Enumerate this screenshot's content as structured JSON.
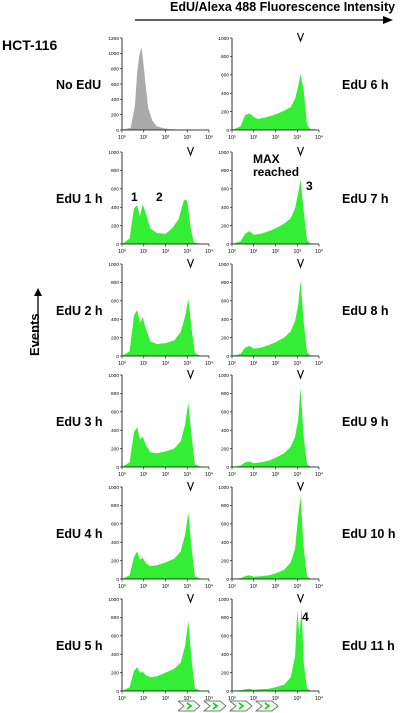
{
  "figure": {
    "top_title": "EdU/Alexa 488 Fluorescence Intensity",
    "cell_line": "HCT-116",
    "y_axis_label": "Events"
  },
  "colors": {
    "fill_edu": "#33ee33",
    "fill_control": "#aaaaaa",
    "stroke": "#000000"
  },
  "chart_data": [
    {
      "type": "area",
      "condition": "No EdU",
      "column": "left",
      "row": 0,
      "ylim": [
        0,
        1200
      ],
      "yticks": [
        0,
        200,
        400,
        600,
        800,
        1000,
        1200
      ],
      "ytick_labels": [
        "0",
        "200",
        "400",
        "600",
        "800",
        "1000",
        "1200"
      ],
      "x": [
        0.0,
        0.4,
        0.6,
        0.7,
        0.8,
        0.9,
        1.0,
        1.1,
        1.2,
        1.4,
        1.6,
        1.9,
        2.2,
        2.6,
        3.0,
        3.5,
        4.0
      ],
      "values": [
        0,
        30,
        330,
        760,
        980,
        1080,
        820,
        560,
        290,
        120,
        50,
        25,
        12,
        5,
        2,
        1,
        0
      ],
      "marker": false,
      "color": "#aaaaaa",
      "xticks": [
        "10⁰",
        "10¹",
        "10²",
        "10³",
        "10⁴"
      ]
    },
    {
      "type": "area",
      "condition": "EdU 6 h",
      "column": "right",
      "row": 0,
      "ylim": [
        0,
        1000
      ],
      "yticks": [
        0,
        200,
        400,
        600,
        800,
        1000
      ],
      "ytick_labels": [
        "0",
        "200",
        "400",
        "600",
        "800",
        "1000"
      ],
      "x": [
        0.0,
        0.4,
        0.6,
        0.8,
        1.0,
        1.2,
        1.6,
        2.0,
        2.4,
        2.7,
        2.9,
        3.05,
        3.15,
        3.3,
        3.45,
        3.6,
        4.0
      ],
      "values": [
        0,
        40,
        160,
        180,
        140,
        120,
        140,
        170,
        210,
        250,
        340,
        480,
        610,
        420,
        60,
        10,
        0
      ],
      "marker": true,
      "color": "#33ee33",
      "xticks": [
        "10⁰",
        "10¹",
        "10²",
        "10³",
        "10⁴"
      ]
    },
    {
      "type": "area",
      "condition": "EdU 1 h",
      "column": "left",
      "row": 1,
      "ylim": [
        0,
        1000
      ],
      "yticks": [
        0,
        200,
        400,
        600,
        800,
        1000
      ],
      "ytick_labels": [
        "0",
        "200",
        "400",
        "600",
        "800",
        "1000"
      ],
      "x": [
        0.0,
        0.35,
        0.55,
        0.7,
        0.82,
        0.95,
        1.1,
        1.3,
        1.6,
        2.0,
        2.3,
        2.6,
        2.85,
        3.0,
        3.15,
        3.3,
        3.6,
        4.0
      ],
      "values": [
        0,
        60,
        390,
        420,
        300,
        430,
        330,
        170,
        120,
        110,
        170,
        270,
        480,
        470,
        180,
        20,
        2,
        0
      ],
      "marker": true,
      "color": "#33ee33",
      "xticks": [
        "10⁰",
        "10¹",
        "10²",
        "10³",
        "10⁴"
      ]
    },
    {
      "type": "area",
      "condition": "EdU 7 h",
      "column": "right",
      "row": 1,
      "ylim": [
        0,
        1000
      ],
      "yticks": [
        0,
        200,
        400,
        600,
        800,
        1000
      ],
      "ytick_labels": [
        "0",
        "200",
        "400",
        "600",
        "800",
        "1000"
      ],
      "x": [
        0.0,
        0.4,
        0.6,
        0.8,
        1.0,
        1.3,
        1.7,
        2.0,
        2.4,
        2.7,
        2.9,
        3.05,
        3.15,
        3.3,
        3.45,
        3.6,
        4.0
      ],
      "values": [
        0,
        30,
        110,
        140,
        100,
        110,
        140,
        170,
        220,
        280,
        390,
        560,
        700,
        350,
        40,
        5,
        0
      ],
      "marker": true,
      "color": "#33ee33",
      "xticks": [
        "10⁰",
        "10¹",
        "10²",
        "10³",
        "10⁴"
      ]
    },
    {
      "type": "area",
      "condition": "EdU 2 h",
      "column": "left",
      "row": 2,
      "ylim": [
        0,
        1000
      ],
      "yticks": [
        0,
        200,
        400,
        600,
        800,
        1000
      ],
      "ytick_labels": [
        "0",
        "200",
        "400",
        "600",
        "800",
        "1000"
      ],
      "x": [
        0.0,
        0.35,
        0.55,
        0.7,
        0.82,
        0.95,
        1.1,
        1.3,
        1.6,
        2.0,
        2.4,
        2.7,
        2.9,
        3.05,
        3.2,
        3.35,
        3.6,
        4.0
      ],
      "values": [
        0,
        50,
        440,
        500,
        360,
        420,
        290,
        160,
        130,
        140,
        170,
        260,
        430,
        620,
        300,
        30,
        2,
        0
      ],
      "marker": true,
      "color": "#33ee33",
      "xticks": [
        "10⁰",
        "10¹",
        "10²",
        "10³",
        "10⁴"
      ]
    },
    {
      "type": "area",
      "condition": "EdU 8 h",
      "column": "right",
      "row": 2,
      "ylim": [
        0,
        1000
      ],
      "yticks": [
        0,
        200,
        400,
        600,
        800,
        1000
      ],
      "ytick_labels": [
        "0",
        "200",
        "400",
        "600",
        "800",
        "1000"
      ],
      "x": [
        0.0,
        0.4,
        0.6,
        0.8,
        1.0,
        1.3,
        1.7,
        2.0,
        2.4,
        2.7,
        2.9,
        3.05,
        3.15,
        3.3,
        3.45,
        3.6,
        4.0
      ],
      "values": [
        0,
        25,
        90,
        110,
        80,
        90,
        120,
        150,
        200,
        270,
        380,
        560,
        820,
        360,
        40,
        5,
        0
      ],
      "marker": true,
      "color": "#33ee33",
      "xticks": [
        "10⁰",
        "10¹",
        "10²",
        "10³",
        "10⁴"
      ]
    },
    {
      "type": "area",
      "condition": "EdU 3 h",
      "column": "left",
      "row": 3,
      "ylim": [
        0,
        1000
      ],
      "yticks": [
        0,
        200,
        400,
        600,
        800,
        1000
      ],
      "ytick_labels": [
        "0",
        "200",
        "400",
        "600",
        "800",
        "1000"
      ],
      "x": [
        0.0,
        0.35,
        0.55,
        0.7,
        0.82,
        0.95,
        1.1,
        1.3,
        1.6,
        2.0,
        2.4,
        2.7,
        2.9,
        3.05,
        3.2,
        3.35,
        3.6,
        4.0
      ],
      "values": [
        0,
        50,
        380,
        430,
        300,
        330,
        240,
        160,
        150,
        170,
        200,
        280,
        460,
        700,
        340,
        30,
        2,
        0
      ],
      "marker": true,
      "color": "#33ee33",
      "xticks": [
        "10⁰",
        "10¹",
        "10²",
        "10³",
        "10⁴"
      ]
    },
    {
      "type": "area",
      "condition": "EdU 9 h",
      "column": "right",
      "row": 3,
      "ylim": [
        0,
        1000
      ],
      "yticks": [
        0,
        200,
        400,
        600,
        800,
        1000
      ],
      "ytick_labels": [
        "0",
        "200",
        "400",
        "600",
        "800",
        "1000"
      ],
      "x": [
        0.0,
        0.4,
        0.6,
        0.8,
        1.0,
        1.3,
        1.7,
        2.0,
        2.4,
        2.7,
        2.9,
        3.05,
        3.15,
        3.3,
        3.45,
        3.6,
        4.0
      ],
      "values": [
        0,
        15,
        50,
        60,
        40,
        50,
        70,
        100,
        150,
        220,
        330,
        520,
        860,
        320,
        30,
        5,
        0
      ],
      "marker": true,
      "color": "#33ee33",
      "xticks": [
        "10⁰",
        "10¹",
        "10²",
        "10³",
        "10⁴"
      ]
    },
    {
      "type": "area",
      "condition": "EdU 4 h",
      "column": "left",
      "row": 4,
      "ylim": [
        0,
        1000
      ],
      "yticks": [
        0,
        200,
        400,
        600,
        800,
        1000
      ],
      "ytick_labels": [
        "0",
        "200",
        "400",
        "600",
        "800",
        "1000"
      ],
      "x": [
        0.0,
        0.35,
        0.55,
        0.7,
        0.82,
        0.95,
        1.1,
        1.3,
        1.6,
        2.0,
        2.4,
        2.7,
        2.9,
        3.05,
        3.2,
        3.35,
        3.6,
        4.0
      ],
      "values": [
        0,
        40,
        240,
        300,
        210,
        230,
        170,
        140,
        150,
        180,
        220,
        300,
        480,
        720,
        340,
        30,
        2,
        0
      ],
      "marker": true,
      "color": "#33ee33",
      "xticks": [
        "10⁰",
        "10¹",
        "10²",
        "10³",
        "10⁴"
      ]
    },
    {
      "type": "area",
      "condition": "EdU 10 h",
      "column": "right",
      "row": 4,
      "ylim": [
        0,
        1000
      ],
      "yticks": [
        0,
        200,
        400,
        600,
        800,
        1000
      ],
      "ytick_labels": [
        "0",
        "200",
        "400",
        "600",
        "800",
        "1000"
      ],
      "x": [
        0.0,
        0.4,
        0.6,
        0.8,
        1.0,
        1.3,
        1.7,
        2.0,
        2.4,
        2.7,
        2.9,
        3.05,
        3.15,
        3.3,
        3.45,
        3.6,
        4.0
      ],
      "values": [
        0,
        10,
        30,
        40,
        25,
        30,
        40,
        60,
        100,
        180,
        330,
        700,
        900,
        330,
        30,
        4,
        0
      ],
      "marker": true,
      "color": "#33ee33",
      "xticks": [
        "10⁰",
        "10¹",
        "10²",
        "10³",
        "10⁴"
      ]
    },
    {
      "type": "area",
      "condition": "EdU 5 h",
      "column": "left",
      "row": 5,
      "ylim": [
        0,
        1000
      ],
      "yticks": [
        0,
        200,
        400,
        600,
        800,
        1000
      ],
      "ytick_labels": [
        "0",
        "200",
        "400",
        "600",
        "800",
        "1000"
      ],
      "x": [
        0.0,
        0.35,
        0.55,
        0.7,
        0.82,
        0.95,
        1.1,
        1.3,
        1.6,
        2.0,
        2.4,
        2.7,
        2.9,
        3.05,
        3.2,
        3.35,
        3.6,
        4.0
      ],
      "values": [
        0,
        40,
        220,
        260,
        200,
        210,
        170,
        150,
        160,
        200,
        240,
        310,
        490,
        760,
        340,
        30,
        2,
        0
      ],
      "marker": true,
      "color": "#33ee33",
      "xticks": [
        "10⁰",
        "10¹",
        "10²",
        "10³",
        "10⁴"
      ]
    },
    {
      "type": "area",
      "condition": "EdU 11 h",
      "column": "right",
      "row": 5,
      "ylim": [
        0,
        1000
      ],
      "yticks": [
        0,
        200,
        400,
        600,
        800,
        1000
      ],
      "ytick_labels": [
        "0",
        "200",
        "400",
        "600",
        "800",
        "1000"
      ],
      "x": [
        0.0,
        0.4,
        0.6,
        0.8,
        1.0,
        1.3,
        1.7,
        2.0,
        2.4,
        2.7,
        2.9,
        3.0,
        3.1,
        3.2,
        3.3,
        3.45,
        3.6,
        4.0
      ],
      "values": [
        0,
        8,
        20,
        25,
        15,
        20,
        25,
        40,
        70,
        150,
        380,
        880,
        600,
        900,
        300,
        30,
        4,
        0
      ],
      "marker": true,
      "color": "#33ee33",
      "xticks": [
        "10⁰",
        "10¹",
        "10²",
        "10³",
        "10⁴"
      ]
    }
  ],
  "annotations": {
    "peak_1": "1",
    "peak_2": "2",
    "max_reached": "MAX\nreached",
    "peak_3": "3",
    "peak_4": "4"
  },
  "chevron_count": 4
}
